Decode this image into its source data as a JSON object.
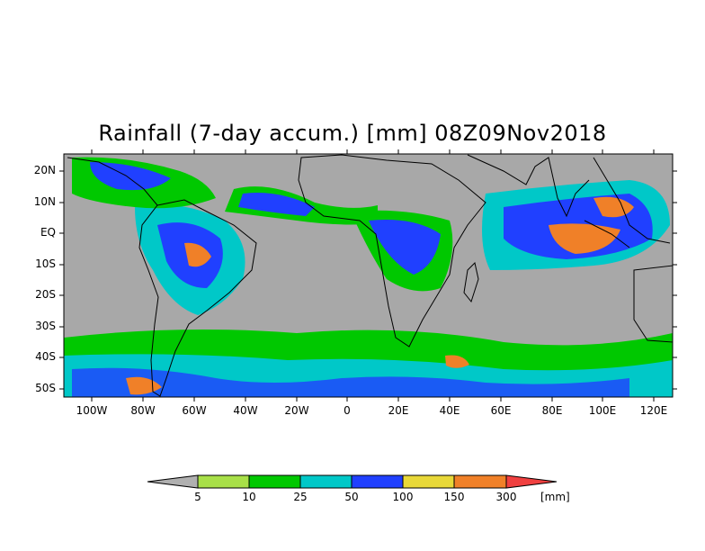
{
  "title": "Rainfall (7-day accum.) [mm] 08Z09Nov2018",
  "lat_labels": [
    "20N",
    "10N",
    "EQ",
    "10S",
    "20S",
    "30S",
    "40S",
    "50S"
  ],
  "lon_labels": [
    "100W",
    "80W",
    "60W",
    "40W",
    "20W",
    "0",
    "20E",
    "40E",
    "60E",
    "80E",
    "100E",
    "120E"
  ],
  "legend": {
    "thresholds": [
      "5",
      "10",
      "25",
      "50",
      "100",
      "150",
      "300"
    ],
    "unit": "[mm]",
    "colors": {
      "below": "#b0b0b0",
      "bins": [
        "#a8e048",
        "#00c800",
        "#00c8c8",
        "#2040ff",
        "#e8d838",
        "#f08028"
      ],
      "above": "#f04040"
    }
  },
  "map_colors": {
    "land": "#a8a8a8",
    "ocean": "#a8a8a8",
    "coast": "#000000"
  }
}
